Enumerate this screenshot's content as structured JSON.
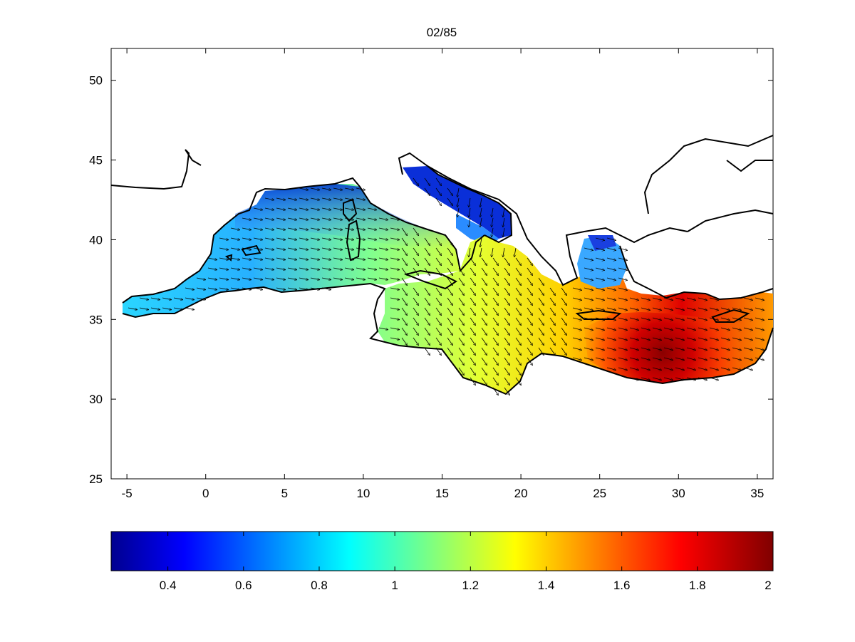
{
  "figure": {
    "title": "02/85"
  },
  "map": {
    "x_ticks": [
      "-5",
      "0",
      "5",
      "10",
      "15",
      "20",
      "25",
      "30",
      "35"
    ],
    "y_ticks": [
      "25",
      "30",
      "35",
      "40",
      "45",
      "50"
    ],
    "lon_range": [
      -6,
      36
    ],
    "lat_range": [
      25,
      52
    ],
    "field_colormap": "jet",
    "vectors": "arrows pointing predominantly east-southeast",
    "hotspot": {
      "lon": 29,
      "lat": 33,
      "value": 2
    }
  },
  "colorbar": {
    "range": [
      0.25,
      2
    ],
    "tick_labels": [
      "0.4",
      "0.6",
      "0.8",
      "1",
      "1.2",
      "1.4",
      "1.6",
      "1.8",
      "2"
    ],
    "tick_values": [
      0.4,
      0.6,
      0.8,
      1,
      1.2,
      1.4,
      1.6,
      1.8,
      2
    ],
    "colors": [
      "#00008f",
      "#0000ff",
      "#0080ff",
      "#00ffff",
      "#80ff80",
      "#ffff00",
      "#ff8000",
      "#ff0000",
      "#800000"
    ]
  },
  "chart_data": {
    "type": "heatmap",
    "title": "02/85",
    "xlabel": "",
    "ylabel": "",
    "xlim": [
      -6,
      36
    ],
    "ylim": [
      25,
      52
    ],
    "x_ticks": [
      -5,
      0,
      5,
      10,
      15,
      20,
      25,
      30,
      35
    ],
    "y_ticks": [
      25,
      30,
      35,
      40,
      45,
      50
    ],
    "colorbar_range": [
      0.25,
      2
    ],
    "colorbar_ticks": [
      0.4,
      0.6,
      0.8,
      1,
      1.2,
      1.4,
      1.6,
      1.8,
      2
    ],
    "grid": false
  }
}
